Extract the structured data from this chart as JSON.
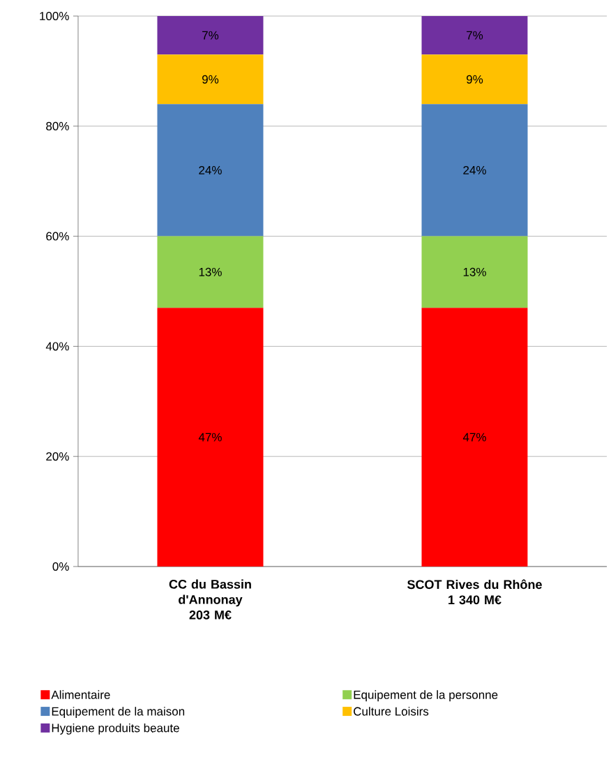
{
  "chart_data": {
    "type": "bar",
    "stacked": true,
    "categories": [
      "CC du Bassin\nd'Annonay\n203 M€",
      "SCOT Rives du Rhône\n1 340 M€"
    ],
    "series": [
      {
        "name": "Alimentaire",
        "color": "#ff0000",
        "values": [
          47,
          47
        ],
        "value_labels": [
          "47%",
          "47%"
        ]
      },
      {
        "name": "Equipement de la personne",
        "color": "#92d050",
        "values": [
          13,
          13
        ],
        "value_labels": [
          "13%",
          "13%"
        ]
      },
      {
        "name": "Equipement de la maison",
        "color": "#4f81bd",
        "values": [
          24,
          24
        ],
        "value_labels": [
          "24%",
          "24%"
        ]
      },
      {
        "name": "Culture Loisirs",
        "color": "#ffc000",
        "values": [
          9,
          9
        ],
        "value_labels": [
          "9%",
          "9%"
        ]
      },
      {
        "name": "Hygiene produits beaute",
        "color": "#7030a0",
        "values": [
          7,
          7
        ],
        "value_labels": [
          "7%",
          "7%"
        ]
      }
    ],
    "ylim": [
      0,
      100
    ],
    "yticks": [
      {
        "value": 0,
        "label": "0%"
      },
      {
        "value": 20,
        "label": "20%"
      },
      {
        "value": 40,
        "label": "40%"
      },
      {
        "value": 60,
        "label": "60%"
      },
      {
        "value": 80,
        "label": "80%"
      },
      {
        "value": 100,
        "label": "100%"
      }
    ],
    "grid": "y",
    "legend": "bottom"
  }
}
